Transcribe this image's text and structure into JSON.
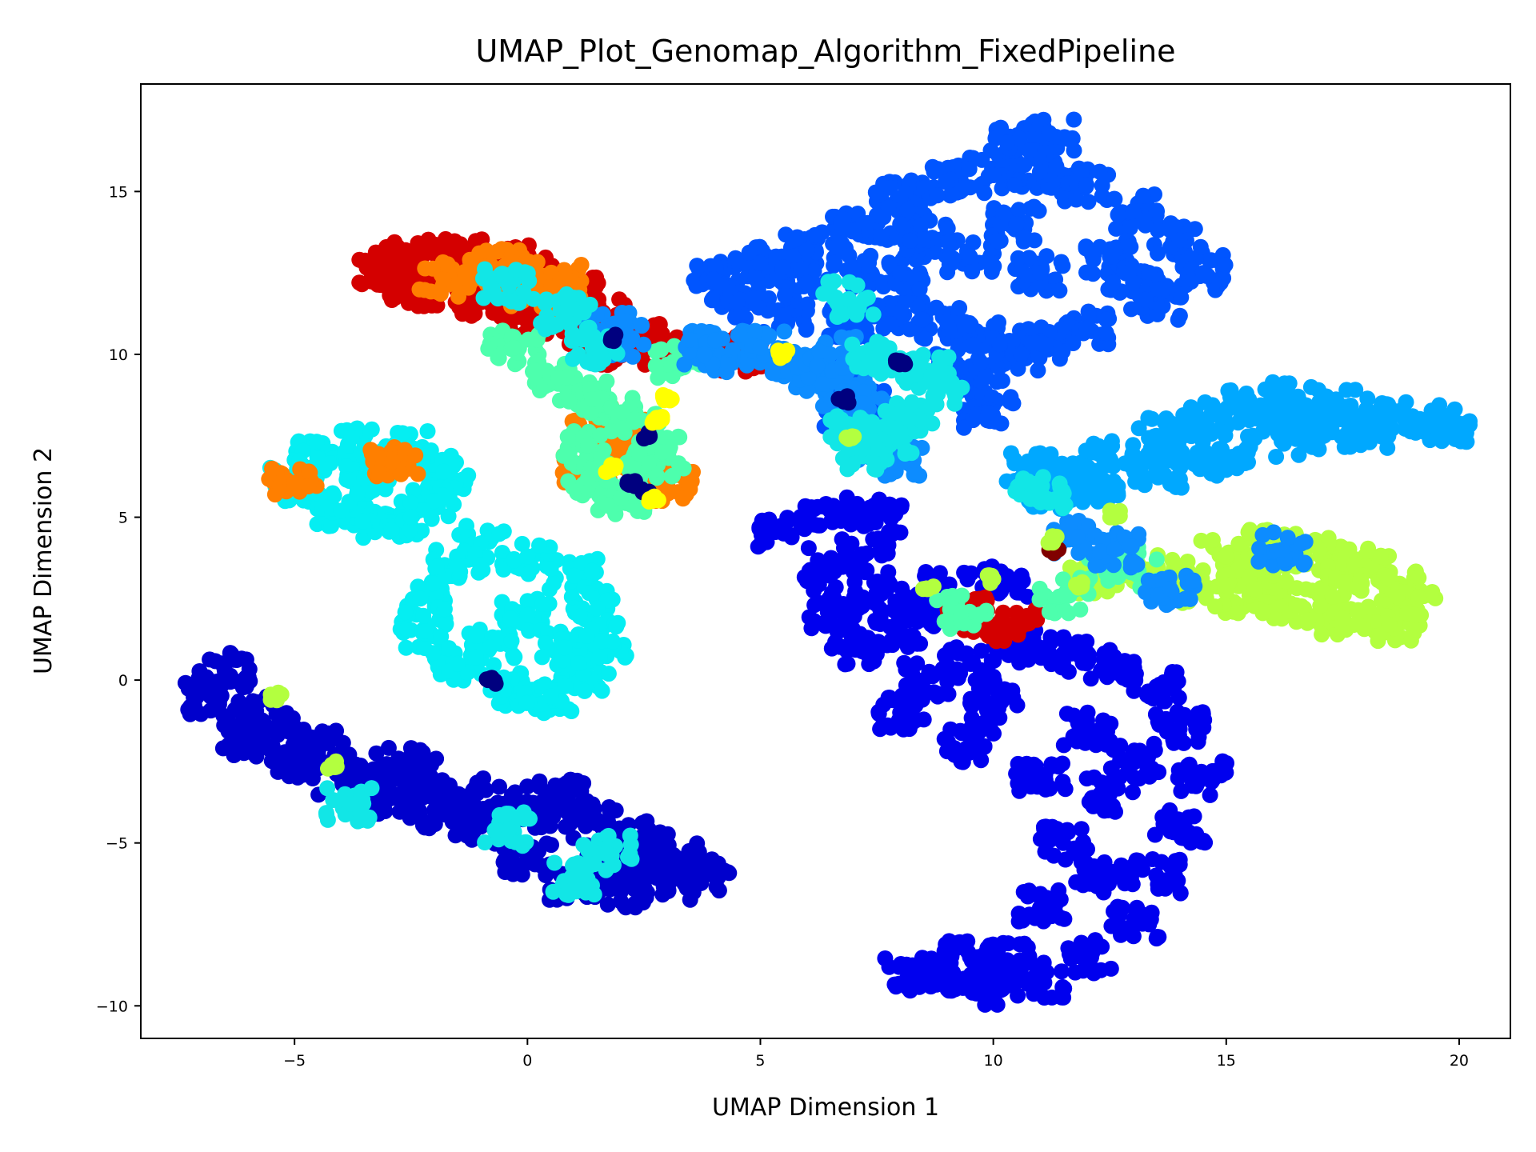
{
  "chart_data": {
    "type": "scatter",
    "title": "UMAP_Plot_Genomap_Algorithm_FixedPipeline",
    "xlabel": "UMAP Dimension 1",
    "ylabel": "UMAP Dimension 2",
    "xlim": [
      -8.3,
      21.1
    ],
    "ylim": [
      -11.0,
      18.3
    ],
    "xticks": [
      -5,
      0,
      5,
      10,
      15,
      20
    ],
    "yticks": [
      -10,
      -5,
      0,
      5,
      10,
      15
    ],
    "xtick_labels": [
      "−5",
      "0",
      "5",
      "10",
      "15",
      "20"
    ],
    "ytick_labels": [
      "−10",
      "−5",
      "0",
      "5",
      "10",
      "15"
    ],
    "grid": false,
    "legend": "none",
    "colormap": "jet",
    "clusters": [
      {
        "color": "#0055ff",
        "center": [
          9.0,
          13.2
        ],
        "points": [
          [
            4.0,
            12.3
          ],
          [
            5.0,
            12.8
          ],
          [
            6.0,
            13.2
          ],
          [
            7.0,
            13.8
          ],
          [
            8.0,
            14.8
          ],
          [
            9.0,
            15.3
          ],
          [
            10.0,
            15.5
          ],
          [
            11.0,
            15.6
          ],
          [
            12.0,
            15.2
          ],
          [
            13.0,
            14.4
          ],
          [
            14.0,
            13.5
          ],
          [
            14.5,
            12.5
          ],
          [
            13.5,
            11.6
          ],
          [
            12.0,
            10.8
          ],
          [
            11.0,
            10.4
          ],
          [
            10.0,
            10.5
          ],
          [
            9.0,
            11.0
          ],
          [
            8.0,
            11.3
          ],
          [
            7.0,
            11.0
          ],
          [
            5.5,
            11.2
          ],
          [
            4.5,
            11.6
          ],
          [
            6.0,
            12.2
          ],
          [
            8.0,
            12.5
          ],
          [
            9.5,
            13.0
          ],
          [
            11.0,
            12.5
          ],
          [
            12.5,
            13.0
          ],
          [
            10.5,
            14.0
          ],
          [
            8.5,
            13.6
          ],
          [
            7.0,
            12.6
          ],
          [
            13.0,
            12.2
          ],
          [
            10.3,
            16.5
          ],
          [
            11.2,
            16.8
          ],
          [
            8.0,
            14.0
          ],
          [
            6.6,
            9.5
          ],
          [
            7.2,
            8.5
          ],
          [
            6.8,
            8.0
          ],
          [
            9.7,
            9.2
          ],
          [
            9.9,
            8.2
          ],
          [
            10.6,
            10.0
          ],
          [
            9.3,
            9.6
          ]
        ]
      },
      {
        "color": "#0000ee",
        "center": [
          10.5,
          -1.0
        ],
        "points": [
          [
            5.5,
            4.5
          ],
          [
            6.5,
            5.2
          ],
          [
            7.5,
            5.0
          ],
          [
            6.5,
            3.2
          ],
          [
            7.5,
            2.5
          ],
          [
            8.0,
            1.5
          ],
          [
            7.0,
            1.0
          ],
          [
            8.5,
            0.0
          ],
          [
            9.5,
            0.5
          ],
          [
            10.5,
            1.0
          ],
          [
            11.5,
            0.8
          ],
          [
            12.5,
            0.5
          ],
          [
            13.5,
            -0.2
          ],
          [
            14.0,
            -1.5
          ],
          [
            14.5,
            -3.0
          ],
          [
            14.0,
            -4.5
          ],
          [
            13.5,
            -6.0
          ],
          [
            13.0,
            -7.5
          ],
          [
            12.0,
            -8.5
          ],
          [
            11.0,
            -9.2
          ],
          [
            10.0,
            -9.5
          ],
          [
            9.0,
            -9.0
          ],
          [
            8.2,
            -9.0
          ],
          [
            9.5,
            -8.5
          ],
          [
            11.0,
            -7.0
          ],
          [
            11.5,
            -5.0
          ],
          [
            12.5,
            -3.5
          ],
          [
            11.0,
            -3.0
          ],
          [
            9.5,
            -2.0
          ],
          [
            8.0,
            -1.0
          ],
          [
            6.5,
            2.0
          ],
          [
            7.2,
            3.8
          ],
          [
            10.0,
            -0.8
          ],
          [
            12.0,
            -1.5
          ],
          [
            13.0,
            -2.5
          ],
          [
            12.3,
            -6.0
          ],
          [
            10.3,
            -8.6
          ],
          [
            9.0,
            2.8
          ],
          [
            8.6,
            2.2
          ],
          [
            10.3,
            3.0
          ]
        ]
      },
      {
        "color": "#0000cc",
        "center": [
          -3.0,
          -2.8
        ],
        "points": [
          [
            -6.8,
            -0.5
          ],
          [
            -6.5,
            0.3
          ],
          [
            -6.0,
            -1.0
          ],
          [
            -5.5,
            -1.5
          ],
          [
            -4.5,
            -2.0
          ],
          [
            -3.5,
            -2.8
          ],
          [
            -2.5,
            -3.2
          ],
          [
            -1.5,
            -3.5
          ],
          [
            -0.5,
            -3.8
          ],
          [
            0.5,
            -4.0
          ],
          [
            1.5,
            -4.3
          ],
          [
            2.5,
            -4.8
          ],
          [
            3.2,
            -5.5
          ],
          [
            3.8,
            -6.0
          ],
          [
            3.0,
            -6.2
          ],
          [
            2.0,
            -6.5
          ],
          [
            1.0,
            -6.2
          ],
          [
            0.0,
            -5.5
          ],
          [
            -1.0,
            -4.5
          ],
          [
            -2.0,
            -4.0
          ],
          [
            -3.0,
            -3.6
          ],
          [
            -4.0,
            -3.0
          ],
          [
            -5.0,
            -2.5
          ],
          [
            -6.0,
            -1.8
          ],
          [
            1.8,
            -5.6
          ],
          [
            2.6,
            -5.9
          ],
          [
            -2.5,
            -2.6
          ],
          [
            0.8,
            -3.6
          ]
        ]
      },
      {
        "color": "#00a8ff",
        "center": [
          15.0,
          7.2
        ],
        "points": [
          [
            10.8,
            6.5
          ],
          [
            11.5,
            6.2
          ],
          [
            12.5,
            6.8
          ],
          [
            13.5,
            7.5
          ],
          [
            14.5,
            8.0
          ],
          [
            15.5,
            8.4
          ],
          [
            16.5,
            8.6
          ],
          [
            17.5,
            8.4
          ],
          [
            18.5,
            8.0
          ],
          [
            19.5,
            7.9
          ],
          [
            19.8,
            7.8
          ],
          [
            18.0,
            7.6
          ],
          [
            16.5,
            7.4
          ],
          [
            15.0,
            6.8
          ],
          [
            13.5,
            6.4
          ],
          [
            12.2,
            6.0
          ],
          [
            11.3,
            5.8
          ],
          [
            14.0,
            7.0
          ],
          [
            17.0,
            8.0
          ],
          [
            16.0,
            7.9
          ]
        ]
      },
      {
        "color": "#05eef2",
        "center": [
          0.0,
          3.5
        ],
        "points": [
          [
            -5.0,
            6.0
          ],
          [
            -4.5,
            6.8
          ],
          [
            -3.5,
            7.2
          ],
          [
            -2.5,
            7.1
          ],
          [
            -1.8,
            6.4
          ],
          [
            -2.0,
            5.5
          ],
          [
            -3.0,
            4.8
          ],
          [
            -4.0,
            5.2
          ],
          [
            -2.5,
            5.0
          ],
          [
            -1.0,
            4.2
          ],
          [
            0.0,
            3.8
          ],
          [
            1.0,
            3.2
          ],
          [
            1.5,
            2.2
          ],
          [
            1.6,
            1.2
          ],
          [
            1.2,
            0.2
          ],
          [
            0.5,
            -0.5
          ],
          [
            -0.5,
            -0.3
          ],
          [
            -1.5,
            0.5
          ],
          [
            -2.2,
            1.5
          ],
          [
            -2.3,
            2.5
          ],
          [
            -1.5,
            3.5
          ],
          [
            -3.5,
            6.2
          ],
          [
            0.0,
            2.0
          ],
          [
            -0.8,
            1.0
          ],
          [
            0.8,
            1.0
          ]
        ]
      },
      {
        "color": "#b3ff3f",
        "center": [
          16.5,
          2.8
        ],
        "points": [
          [
            14.0,
            3.2
          ],
          [
            15.0,
            3.8
          ],
          [
            16.0,
            4.1
          ],
          [
            17.0,
            4.0
          ],
          [
            18.0,
            3.5
          ],
          [
            18.7,
            2.8
          ],
          [
            19.0,
            2.2
          ],
          [
            18.5,
            1.7
          ],
          [
            17.5,
            1.9
          ],
          [
            16.5,
            2.3
          ],
          [
            15.5,
            2.6
          ],
          [
            14.5,
            2.8
          ],
          [
            16.0,
            3.2
          ],
          [
            17.5,
            3.0
          ],
          [
            13.0,
            3.4
          ],
          [
            12.2,
            3.2
          ]
        ]
      },
      {
        "color": "#d40000",
        "center": [
          -1.5,
          12.2
        ],
        "points": [
          [
            -3.2,
            12.6
          ],
          [
            -2.5,
            13.0
          ],
          [
            -1.5,
            13.0
          ],
          [
            -0.5,
            12.8
          ],
          [
            0.3,
            12.5
          ],
          [
            1.0,
            12.0
          ],
          [
            1.6,
            11.2
          ],
          [
            2.4,
            10.6
          ],
          [
            3.0,
            10.2
          ],
          [
            -2.0,
            12.0
          ],
          [
            -1.0,
            11.6
          ],
          [
            0.0,
            11.0
          ],
          [
            -2.8,
            12.2
          ],
          [
            -0.2,
            12.2
          ],
          [
            2.0,
            10.2
          ],
          [
            4.5,
            10.0
          ],
          [
            1.3,
            10.5
          ],
          [
            9.5,
            2.0
          ],
          [
            10.4,
            1.7
          ]
        ]
      },
      {
        "color": "#ff7f00",
        "center": [
          0.5,
          12.0
        ],
        "points": [
          [
            -1.8,
            12.3
          ],
          [
            -0.8,
            12.5
          ],
          [
            0.2,
            12.0
          ],
          [
            0.9,
            11.8
          ],
          [
            -0.5,
            12.7
          ],
          [
            0.7,
            12.3
          ],
          [
            1.5,
            7.5
          ],
          [
            2.2,
            7.0
          ],
          [
            2.7,
            6.2
          ],
          [
            1.8,
            6.8
          ],
          [
            3.0,
            6.0
          ],
          [
            2.0,
            7.9
          ],
          [
            1.3,
            6.5
          ],
          [
            -5.0,
            6.0
          ],
          [
            -2.9,
            6.7
          ]
        ]
      },
      {
        "color": "#4dffad",
        "center": [
          1.8,
          7.0
        ],
        "points": [
          [
            -0.3,
            10.2
          ],
          [
            0.5,
            9.3
          ],
          [
            1.2,
            8.8
          ],
          [
            1.8,
            8.4
          ],
          [
            2.3,
            8.0
          ],
          [
            1.3,
            7.2
          ],
          [
            1.3,
            6.2
          ],
          [
            2.0,
            5.6
          ],
          [
            2.6,
            6.5
          ],
          [
            2.9,
            7.0
          ],
          [
            3.3,
            9.8
          ],
          [
            12.6,
            3.6
          ],
          [
            13.0,
            3.4
          ],
          [
            11.5,
            2.6
          ],
          [
            9.3,
            2.1
          ]
        ]
      },
      {
        "color": "#0d8cff",
        "center": [
          7.5,
          9.0
        ],
        "points": [
          [
            6.0,
            9.3
          ],
          [
            6.8,
            8.7
          ],
          [
            7.5,
            7.2
          ],
          [
            8.1,
            6.8
          ],
          [
            7.2,
            8.5
          ],
          [
            5.8,
            9.6
          ],
          [
            6.5,
            10.0
          ],
          [
            5.0,
            10.2
          ],
          [
            4.0,
            10.2
          ],
          [
            3.8,
            10.0
          ],
          [
            11.8,
            4.4
          ],
          [
            12.6,
            4.0
          ],
          [
            16.2,
            4.0
          ],
          [
            13.8,
            2.8
          ],
          [
            1.8,
            10.8
          ],
          [
            2.0,
            10.4
          ]
        ]
      },
      {
        "color": "#12e6e6",
        "center": [
          7.5,
          8.0
        ],
        "points": [
          [
            7.3,
            7.0
          ],
          [
            7.7,
            7.4
          ],
          [
            8.2,
            8.0
          ],
          [
            8.6,
            9.5
          ],
          [
            8.8,
            9.0
          ],
          [
            7.0,
            7.6
          ],
          [
            -0.4,
            12.1
          ],
          [
            0.8,
            11.3
          ],
          [
            1.4,
            10.2
          ],
          [
            -3.8,
            -3.8
          ],
          [
            -0.4,
            -4.6
          ],
          [
            1.7,
            -5.3
          ],
          [
            1.0,
            -6.1
          ],
          [
            6.9,
            11.7
          ],
          [
            7.5,
            9.9
          ],
          [
            11.0,
            5.8
          ]
        ]
      },
      {
        "color": "#00007f",
        "center": [
          2.5,
          6.0
        ],
        "points": [
          [
            2.2,
            6.0
          ],
          [
            2.5,
            5.8
          ],
          [
            2.6,
            7.5
          ],
          [
            6.8,
            8.6
          ],
          [
            -0.8,
            0.0
          ],
          [
            1.8,
            10.5
          ],
          [
            8.0,
            9.8
          ]
        ]
      },
      {
        "color": "#ffff00",
        "center": [
          5.5,
          10.0
        ],
        "points": [
          [
            5.5,
            10.0
          ],
          [
            3.0,
            8.7
          ],
          [
            2.8,
            8.0
          ],
          [
            1.8,
            6.5
          ],
          [
            2.7,
            5.6
          ]
        ]
      },
      {
        "color": "#800000",
        "center": [
          11.3,
          4.0
        ],
        "points": [
          [
            11.3,
            4.0
          ]
        ]
      },
      {
        "color": "#b3ff3f",
        "center": [
          -5.4,
          -0.5
        ],
        "points": [
          [
            -5.4,
            -0.5
          ],
          [
            -4.2,
            -2.6
          ],
          [
            8.6,
            2.8
          ],
          [
            10.0,
            3.1
          ],
          [
            11.3,
            4.3
          ],
          [
            6.9,
            7.4
          ],
          [
            12.6,
            5.1
          ],
          [
            11.8,
            2.9
          ]
        ]
      }
    ]
  }
}
